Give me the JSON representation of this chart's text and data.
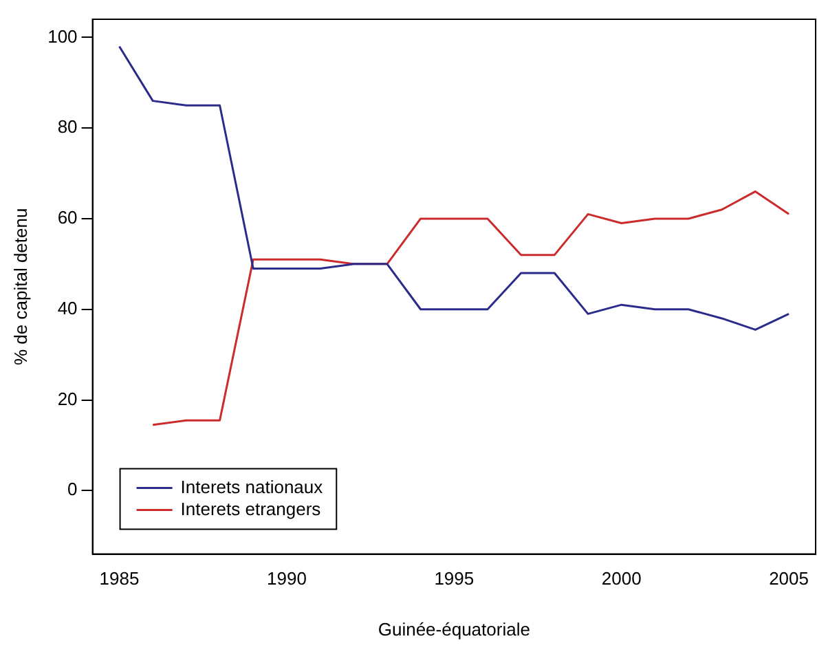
{
  "chart_data": {
    "type": "line",
    "xlabel": "Guinée-équatoriale",
    "ylabel": "% de capital detenu",
    "x": [
      1985,
      1986,
      1987,
      1988,
      1989,
      1990,
      1991,
      1992,
      1993,
      1994,
      1995,
      1996,
      1997,
      1998,
      1999,
      2000,
      2001,
      2002,
      2003,
      2004,
      2005
    ],
    "series": [
      {
        "name": "Interets nationaux",
        "color": "#2b2b8c",
        "values": [
          98,
          86,
          85,
          85,
          49,
          49,
          49,
          50,
          50,
          40,
          40,
          40,
          48,
          48,
          39,
          41,
          40,
          40,
          38,
          35.5,
          39
        ]
      },
      {
        "name": "Interets etrangers",
        "color": "#cc2b2b",
        "values": [
          null,
          14.5,
          15.5,
          15.5,
          51,
          51,
          51,
          50,
          50,
          60,
          60,
          60,
          52,
          52,
          61,
          59,
          60,
          60,
          62,
          66,
          61
        ]
      }
    ],
    "xlim": [
      1984.2,
      2005.8
    ],
    "ylim": [
      -14,
      104
    ],
    "xticks": [
      1985,
      1990,
      1995,
      2000,
      2005
    ],
    "yticks": [
      0,
      20,
      40,
      60,
      80,
      100
    ],
    "grid": false,
    "legend": "bottom left",
    "line_style": "solid",
    "marker": "none"
  }
}
